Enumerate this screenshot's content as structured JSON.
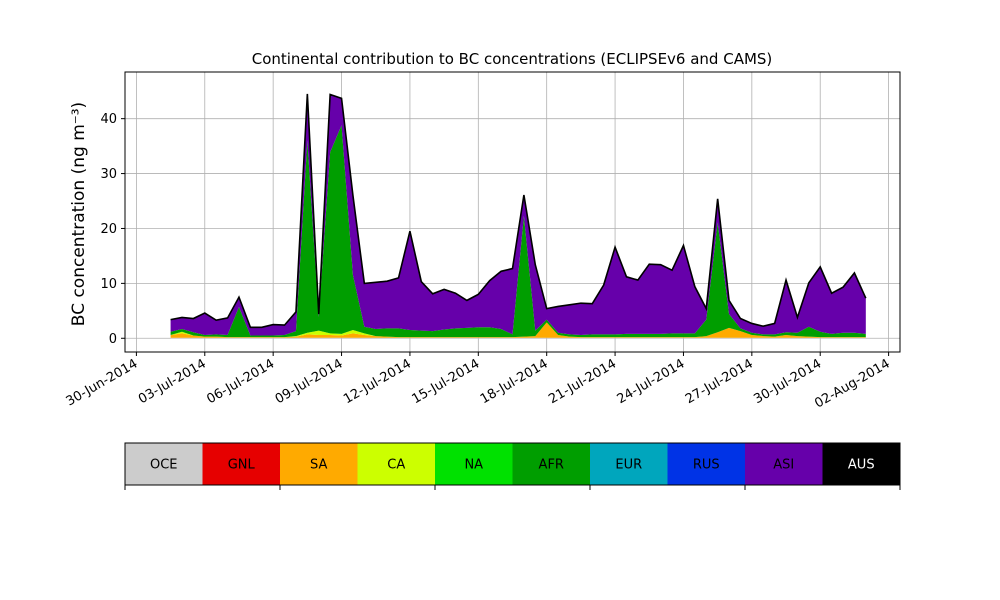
{
  "chart_data": {
    "type": "area",
    "stacked": true,
    "title": "Continental contribution to BC concentrations (ECLIPSEv6 and CAMS)",
    "xlabel": "",
    "ylabel": "BC concentration (ng m⁻³)",
    "ylim": [
      -2.5,
      48.5
    ],
    "xlim": [
      "2014-06-29T12:00",
      "2014-08-02T12:00"
    ],
    "yticks": [
      0,
      10,
      20,
      30,
      40
    ],
    "xticks": [
      "30-Jun-2014",
      "03-Jul-2014",
      "06-Jul-2014",
      "09-Jul-2014",
      "12-Jul-2014",
      "15-Jul-2014",
      "18-Jul-2014",
      "21-Jul-2014",
      "24-Jul-2014",
      "27-Jul-2014",
      "30-Jul-2014",
      "02-Aug-2014"
    ],
    "grid": true,
    "legend_position": "bottom",
    "x": [
      "2014-07-01T12:00",
      "2014-07-02T00:00",
      "2014-07-02T12:00",
      "2014-07-03T00:00",
      "2014-07-03T12:00",
      "2014-07-04T00:00",
      "2014-07-04T12:00",
      "2014-07-05T00:00",
      "2014-07-05T12:00",
      "2014-07-06T00:00",
      "2014-07-06T12:00",
      "2014-07-07T00:00",
      "2014-07-07T12:00",
      "2014-07-08T00:00",
      "2014-07-08T12:00",
      "2014-07-09T00:00",
      "2014-07-09T12:00",
      "2014-07-10T00:00",
      "2014-07-10T12:00",
      "2014-07-11T00:00",
      "2014-07-11T12:00",
      "2014-07-12T00:00",
      "2014-07-12T12:00",
      "2014-07-13T00:00",
      "2014-07-13T12:00",
      "2014-07-14T00:00",
      "2014-07-14T12:00",
      "2014-07-15T00:00",
      "2014-07-15T12:00",
      "2014-07-16T00:00",
      "2014-07-16T12:00",
      "2014-07-17T00:00",
      "2014-07-17T12:00",
      "2014-07-18T00:00",
      "2014-07-18T12:00",
      "2014-07-19T00:00",
      "2014-07-19T12:00",
      "2014-07-20T00:00",
      "2014-07-20T12:00",
      "2014-07-21T00:00",
      "2014-07-21T12:00",
      "2014-07-22T00:00",
      "2014-07-22T12:00",
      "2014-07-23T00:00",
      "2014-07-23T12:00",
      "2014-07-24T00:00",
      "2014-07-24T12:00",
      "2014-07-25T00:00",
      "2014-07-25T12:00",
      "2014-07-26T00:00",
      "2014-07-26T12:00",
      "2014-07-27T00:00",
      "2014-07-27T12:00",
      "2014-07-28T00:00",
      "2014-07-28T12:00",
      "2014-07-29T00:00",
      "2014-07-29T12:00",
      "2014-07-30T00:00",
      "2014-07-30T12:00",
      "2014-07-31T00:00",
      "2014-07-31T12:00",
      "2014-08-01T00:00"
    ],
    "series": [
      {
        "name": "OCE",
        "color": "#cccccc",
        "values": [
          0.1,
          0.1,
          0.1,
          0.1,
          0.1,
          0.1,
          0.1,
          0.1,
          0.1,
          0.1,
          0.1,
          0.1,
          0.1,
          0.1,
          0.1,
          0.1,
          0.1,
          0.1,
          0.1,
          0.1,
          0.1,
          0.1,
          0.1,
          0.1,
          0.1,
          0.1,
          0.1,
          0.1,
          0.1,
          0.1,
          0.1,
          0.1,
          0.1,
          0.1,
          0.1,
          0.1,
          0.1,
          0.1,
          0.1,
          0.1,
          0.1,
          0.1,
          0.1,
          0.1,
          0.1,
          0.1,
          0.1,
          0.1,
          0.1,
          0.1,
          0.1,
          0.1,
          0.1,
          0.1,
          0.1,
          0.1,
          0.1,
          0.1,
          0.1,
          0.1,
          0.1,
          0.1
        ]
      },
      {
        "name": "GNL",
        "color": "#e60000",
        "values": [
          0,
          0,
          0,
          0,
          0,
          0,
          0,
          0,
          0,
          0,
          0,
          0,
          0,
          0,
          0,
          0,
          0,
          0,
          0,
          0,
          0,
          0,
          0,
          0,
          0,
          0,
          0,
          0,
          0,
          0,
          0,
          0,
          0,
          0,
          0,
          0,
          0,
          0,
          0,
          0,
          0,
          0,
          0,
          0,
          0,
          0,
          0,
          0,
          0,
          0,
          0,
          0,
          0,
          0,
          0,
          0,
          0,
          0,
          0,
          0,
          0,
          0
        ]
      },
      {
        "name": "SA",
        "color": "#ffaa00",
        "values": [
          0.5,
          0.8,
          0.4,
          0.2,
          0.2,
          0.1,
          0.1,
          0.1,
          0.1,
          0.1,
          0.1,
          0.2,
          0.6,
          0.5,
          0.5,
          0.4,
          0.8,
          0.5,
          0.3,
          0.2,
          0.1,
          0.1,
          0.1,
          0.1,
          0.1,
          0.1,
          0.1,
          0.1,
          0.1,
          0.1,
          0.1,
          0.2,
          0.3,
          2.8,
          0.5,
          0.2,
          0.1,
          0.1,
          0.1,
          0.1,
          0.1,
          0.1,
          0.1,
          0.1,
          0.1,
          0.1,
          0.1,
          0.3,
          1.0,
          1.8,
          1.2,
          0.5,
          0.3,
          0.2,
          0.5,
          0.3,
          0.2,
          0.1,
          0.1,
          0.1,
          0.1,
          0.1
        ]
      },
      {
        "name": "CA",
        "color": "#ccff00",
        "values": [
          0,
          0.3,
          0,
          0,
          0,
          0,
          0,
          0,
          0,
          0,
          0,
          0.1,
          0.3,
          0.8,
          0.3,
          0.3,
          0.6,
          0.3,
          0,
          0,
          0,
          0,
          0,
          0,
          0,
          0,
          0,
          0,
          0,
          0,
          0,
          0,
          0,
          0,
          0,
          0,
          0,
          0,
          0,
          0,
          0,
          0,
          0,
          0,
          0,
          0,
          0,
          0,
          0,
          0,
          0,
          0,
          0,
          0,
          0,
          0,
          0,
          0,
          0,
          0,
          0,
          0
        ]
      },
      {
        "name": "NA",
        "color": "#00e100",
        "values": [
          0,
          0,
          0,
          0,
          0,
          0,
          0,
          0,
          0,
          0,
          0,
          0,
          0,
          0,
          0,
          0,
          0,
          0,
          0,
          0,
          0,
          0,
          0,
          0,
          0,
          0,
          0,
          0,
          0,
          0,
          0,
          0,
          0,
          0,
          0,
          0,
          0,
          0,
          0,
          0,
          0,
          0,
          0,
          0,
          0,
          0,
          0,
          0,
          0,
          0,
          0,
          0,
          0,
          0,
          0,
          0,
          0,
          0,
          0,
          0,
          0,
          0
        ]
      },
      {
        "name": "AFR",
        "color": "#009e00",
        "values": [
          0.6,
          0.5,
          0.6,
          0.3,
          0.4,
          0.4,
          5.5,
          0.3,
          0.3,
          0.3,
          0.4,
          0.9,
          35,
          2.5,
          33,
          38,
          10,
          1.2,
          1.3,
          1.5,
          1.6,
          1.3,
          1.2,
          1.1,
          1.4,
          1.6,
          1.7,
          1.8,
          1.8,
          1.5,
          0.5,
          22,
          1.0,
          0.5,
          0.4,
          0.4,
          0.4,
          0.5,
          0.5,
          0.5,
          0.6,
          0.6,
          0.6,
          0.6,
          0.7,
          0.7,
          0.7,
          3.0,
          20,
          2.5,
          0.5,
          0.4,
          0.3,
          0.4,
          0.5,
          0.6,
          1.8,
          1.0,
          0.6,
          0.8,
          0.8,
          0.6
        ]
      },
      {
        "name": "EUR",
        "color": "#00a6bd",
        "values": [
          0,
          0,
          0,
          0,
          0,
          0,
          0,
          0,
          0,
          0,
          0,
          0,
          0,
          0,
          0,
          0,
          0,
          0,
          0,
          0,
          0,
          0,
          0,
          0,
          0,
          0,
          0,
          0,
          0,
          0,
          0,
          0,
          0,
          0,
          0,
          0,
          0,
          0,
          0,
          0,
          0,
          0,
          0,
          0,
          0,
          0,
          0,
          0,
          0,
          0,
          0,
          0,
          0,
          0,
          0,
          0,
          0,
          0,
          0,
          0,
          0,
          0
        ]
      },
      {
        "name": "RUS",
        "color": "#0033e6",
        "values": [
          0,
          0,
          0,
          0,
          0,
          0,
          0,
          0,
          0,
          0,
          0,
          0,
          0,
          0,
          0,
          0,
          0,
          0,
          0,
          0,
          0,
          0,
          0,
          0,
          0,
          0,
          0,
          0,
          0,
          0,
          0,
          0,
          0,
          0,
          0,
          0,
          0,
          0,
          0,
          0,
          0,
          0,
          0,
          0,
          0,
          0,
          0,
          0,
          0,
          0,
          0,
          0,
          0,
          0,
          0,
          0,
          0,
          0,
          0,
          0,
          0,
          0
        ]
      },
      {
        "name": "ASI",
        "color": "#6600aa",
        "values": [
          2.2,
          2.1,
          2.5,
          4.0,
          2.6,
          3.1,
          1.8,
          1.5,
          1.5,
          2.0,
          1.8,
          3.5,
          8.5,
          0.5,
          10.5,
          4.9,
          14.5,
          7.9,
          8.5,
          8.6,
          9.2,
          18,
          8.9,
          6.8,
          7.3,
          6.4,
          5.0,
          6.0,
          8.5,
          10.5,
          12,
          3.8,
          12.0,
          2.0,
          4.8,
          5.4,
          5.8,
          5.6,
          9.0,
          15.9,
          10.4,
          9.8,
          12.7,
          12.6,
          11.5,
          16.0,
          8.5,
          2.0,
          4.3,
          2.5,
          1.8,
          1.7,
          1.5,
          2.0,
          9.5,
          2.8,
          8.0,
          11.8,
          7.4,
          8.3,
          10.9,
          6.5
        ]
      },
      {
        "name": "AUS",
        "color": "#000000",
        "values": [
          0,
          0,
          0,
          0,
          0,
          0,
          0,
          0,
          0,
          0,
          0,
          0,
          0,
          0,
          0,
          0,
          0,
          0,
          0,
          0,
          0,
          0,
          0,
          0,
          0,
          0,
          0,
          0,
          0,
          0,
          0,
          0,
          0,
          0,
          0,
          0,
          0,
          0,
          0,
          0,
          0,
          0,
          0,
          0,
          0,
          0,
          0,
          0,
          0,
          0,
          0,
          0,
          0,
          0,
          0,
          0,
          0,
          0,
          0,
          0,
          0,
          0
        ]
      }
    ]
  }
}
